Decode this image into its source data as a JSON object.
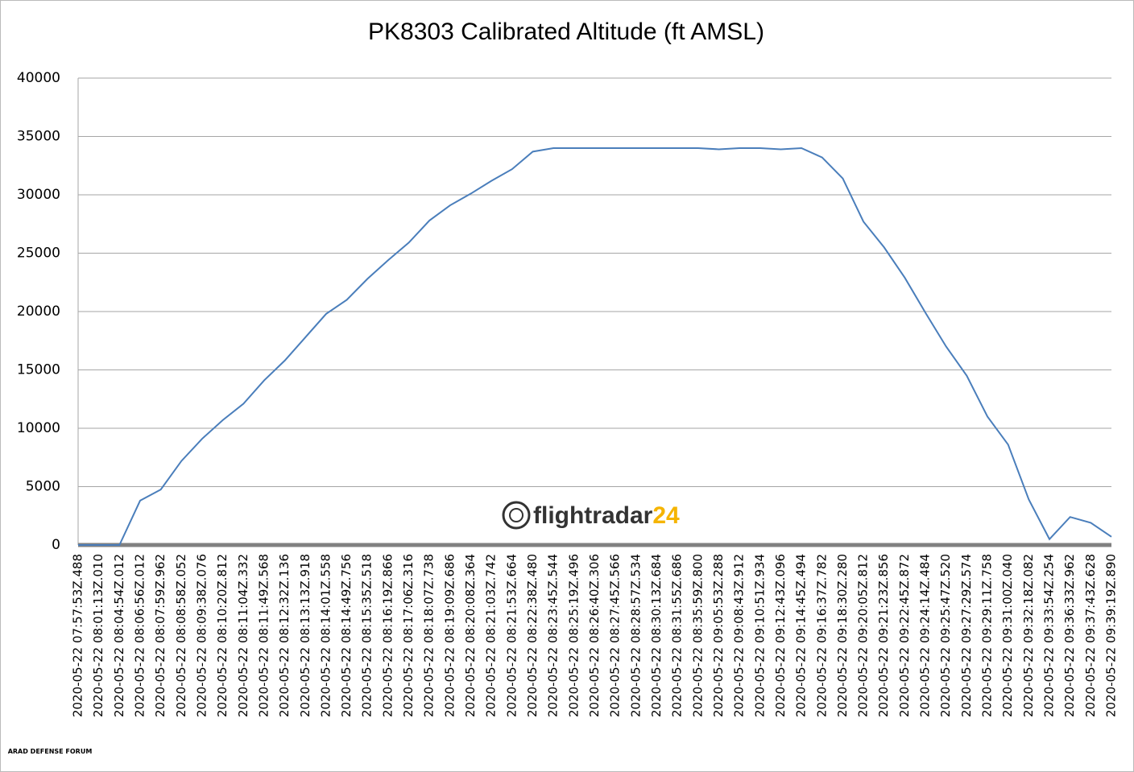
{
  "chart_data": {
    "type": "line",
    "title": "PK8303 Calibrated Altitude (ft AMSL)",
    "categories": [
      "2020-05-22 07:57:53Z.488",
      "2020-05-22 08:01:13Z.010",
      "2020-05-22 08:04:54Z.012",
      "2020-05-22 08:06:56Z.012",
      "2020-05-22 08:07:59Z.962",
      "2020-05-22 08:08:58Z.052",
      "2020-05-22 08:09:38Z.076",
      "2020-05-22 08:10:20Z.812",
      "2020-05-22 08:11:04Z.332",
      "2020-05-22 08:11:49Z.568",
      "2020-05-22 08:12:32Z.136",
      "2020-05-22 08:13:13Z.918",
      "2020-05-22 08:14:01Z.558",
      "2020-05-22 08:14:49Z.756",
      "2020-05-22 08:15:35Z.518",
      "2020-05-22 08:16:19Z.866",
      "2020-05-22 08:17:06Z.316",
      "2020-05-22 08:18:07Z.738",
      "2020-05-22 08:19:09Z.686",
      "2020-05-22 08:20:08Z.364",
      "2020-05-22 08:21:03Z.742",
      "2020-05-22 08:21:53Z.664",
      "2020-05-22 08:22:38Z.480",
      "2020-05-22 08:23:45Z.544",
      "2020-05-22 08:25:19Z.496",
      "2020-05-22 08:26:40Z.306",
      "2020-05-22 08:27:45Z.566",
      "2020-05-22 08:28:57Z.534",
      "2020-05-22 08:30:13Z.684",
      "2020-05-22 08:31:55Z.686",
      "2020-05-22 08:35:59Z.800",
      "2020-05-22 09:05:53Z.288",
      "2020-05-22 09:08:43Z.912",
      "2020-05-22 09:10:51Z.934",
      "2020-05-22 09:12:43Z.096",
      "2020-05-22 09:14:45Z.494",
      "2020-05-22 09:16:37Z.782",
      "2020-05-22 09:18:30Z.280",
      "2020-05-22 09:20:05Z.812",
      "2020-05-22 09:21:23Z.856",
      "2020-05-22 09:22:45Z.872",
      "2020-05-22 09:24:14Z.484",
      "2020-05-22 09:25:47Z.520",
      "2020-05-22 09:27:29Z.574",
      "2020-05-22 09:29:11Z.758",
      "2020-05-22 09:31:00Z.040",
      "2020-05-22 09:32:18Z.082",
      "2020-05-22 09:33:54Z.254",
      "2020-05-22 09:36:33Z.962",
      "2020-05-22 09:37:43Z.628",
      "2020-05-22 09:39:19Z.890"
    ],
    "series": [
      {
        "color": "#4a7ebb",
        "values": [
          0,
          0,
          0,
          3800,
          4750,
          7200,
          9100,
          10700,
          12100,
          14100,
          15800,
          17800,
          19800,
          21000,
          22800,
          24400,
          25900,
          27800,
          29100,
          30100,
          31200,
          32200,
          33700,
          34000,
          34000,
          34000,
          34000,
          34000,
          34000,
          34000,
          34000,
          33900,
          34000,
          34000,
          33900,
          34000,
          33200,
          31400,
          27700,
          25500,
          22900,
          19900,
          17000,
          14500,
          11000,
          8600,
          3900,
          500,
          2400,
          1900,
          700
        ]
      }
    ],
    "ylim": [
      0,
      40000
    ],
    "yticks": [
      0,
      5000,
      10000,
      15000,
      20000,
      25000,
      30000,
      35000,
      40000
    ],
    "grid": true,
    "watermark": {
      "brand": "flightradar",
      "suffix": "24"
    },
    "forum_mark": "ARAD DEFENSE FORUM"
  }
}
